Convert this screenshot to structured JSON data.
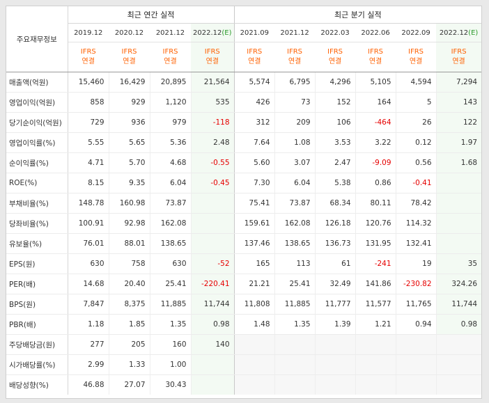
{
  "table": {
    "stub_label": "주요재무정보",
    "annual_title": "최근 연간 실적",
    "quarter_title": "최근 분기 실적",
    "annual_periods": [
      "2019.12",
      "2020.12",
      "2021.12",
      "2022.12"
    ],
    "quarter_periods": [
      "2021.09",
      "2021.12",
      "2022.03",
      "2022.06",
      "2022.09",
      "2022.12"
    ],
    "estimate_suffix": "(E)",
    "ifrs": "IFRS",
    "basis": "연결",
    "rows": [
      {
        "label": "매출액(억원)",
        "values": [
          "15,460",
          "16,429",
          "20,895",
          "21,564",
          "5,574",
          "6,795",
          "4,296",
          "5,105",
          "4,594",
          "7,294"
        ]
      },
      {
        "label": "영업이익(억원)",
        "values": [
          "858",
          "929",
          "1,120",
          "535",
          "426",
          "73",
          "152",
          "164",
          "5",
          "143"
        ]
      },
      {
        "label": "당기순이익(억원)",
        "values": [
          "729",
          "936",
          "979",
          "-118",
          "312",
          "209",
          "106",
          "-464",
          "26",
          "122"
        ]
      },
      {
        "label": "영업이익률(%)",
        "values": [
          "5.55",
          "5.65",
          "5.36",
          "2.48",
          "7.64",
          "1.08",
          "3.53",
          "3.22",
          "0.12",
          "1.97"
        ]
      },
      {
        "label": "순이익률(%)",
        "values": [
          "4.71",
          "5.70",
          "4.68",
          "-0.55",
          "5.60",
          "3.07",
          "2.47",
          "-9.09",
          "0.56",
          "1.68"
        ]
      },
      {
        "label": "ROE(%)",
        "values": [
          "8.15",
          "9.35",
          "6.04",
          "-0.45",
          "7.30",
          "6.04",
          "5.38",
          "0.86",
          "-0.41",
          ""
        ]
      },
      {
        "label": "부채비율(%)",
        "values": [
          "148.78",
          "160.98",
          "73.87",
          "",
          "75.41",
          "73.87",
          "68.34",
          "80.11",
          "78.42",
          ""
        ]
      },
      {
        "label": "당좌비율(%)",
        "values": [
          "100.91",
          "92.98",
          "162.08",
          "",
          "159.61",
          "162.08",
          "126.18",
          "120.76",
          "114.32",
          ""
        ]
      },
      {
        "label": "유보율(%)",
        "values": [
          "76.01",
          "88.01",
          "138.65",
          "",
          "137.46",
          "138.65",
          "136.73",
          "131.95",
          "132.41",
          ""
        ]
      },
      {
        "label": "EPS(원)",
        "values": [
          "630",
          "758",
          "630",
          "-52",
          "165",
          "113",
          "61",
          "-241",
          "19",
          "35"
        ]
      },
      {
        "label": "PER(배)",
        "values": [
          "14.68",
          "20.40",
          "25.41",
          "-220.41",
          "21.21",
          "25.41",
          "32.49",
          "141.86",
          "-230.82",
          "324.26"
        ]
      },
      {
        "label": "BPS(원)",
        "values": [
          "7,847",
          "8,375",
          "11,885",
          "11,744",
          "11,808",
          "11,885",
          "11,777",
          "11,577",
          "11,765",
          "11,744"
        ]
      },
      {
        "label": "PBR(배)",
        "values": [
          "1.18",
          "1.85",
          "1.35",
          "0.98",
          "1.48",
          "1.35",
          "1.39",
          "1.21",
          "0.94",
          "0.98"
        ]
      },
      {
        "label": "주당배당금(원)",
        "values": [
          "277",
          "205",
          "160",
          "140",
          "",
          "",
          "",
          "",
          "",
          ""
        ]
      },
      {
        "label": "시가배당률(%)",
        "values": [
          "2.99",
          "1.33",
          "1.00",
          "",
          "",
          "",
          "",
          "",
          "",
          ""
        ]
      },
      {
        "label": "배당성향(%)",
        "values": [
          "46.88",
          "27.07",
          "30.43",
          "",
          "",
          "",
          "",
          "",
          "",
          ""
        ]
      }
    ]
  },
  "colors": {
    "ifrs": "#ff6000",
    "negative": "#e60000",
    "estimate_bg": "#f3faf3",
    "estimate_mark": "#2a9a2a"
  }
}
